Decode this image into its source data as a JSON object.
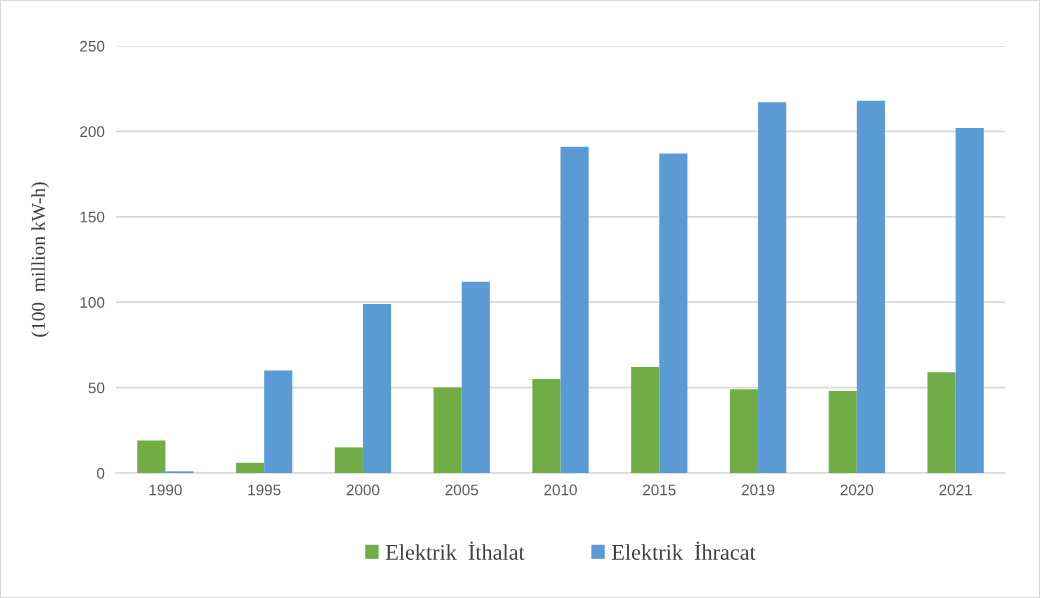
{
  "chart_data": {
    "type": "bar",
    "ylabel": "(100  million kW-h)",
    "categories": [
      "1990",
      "1995",
      "2000",
      "2005",
      "2010",
      "2015",
      "2019",
      "2020",
      "2021"
    ],
    "series": [
      {
        "name": "Elektrik  İthalat",
        "color": "#70ad47",
        "values": [
          19,
          6,
          15,
          50,
          55,
          62,
          49,
          48,
          59
        ]
      },
      {
        "name": "Elektrik  İhracat",
        "color": "#5b9bd5",
        "values": [
          1,
          60,
          99,
          112,
          191,
          187,
          217,
          218,
          202
        ]
      }
    ],
    "ylim": [
      0,
      250
    ],
    "yticks": [
      0,
      50,
      100,
      150,
      200,
      250
    ],
    "grid": "y",
    "legend": "bottom"
  }
}
